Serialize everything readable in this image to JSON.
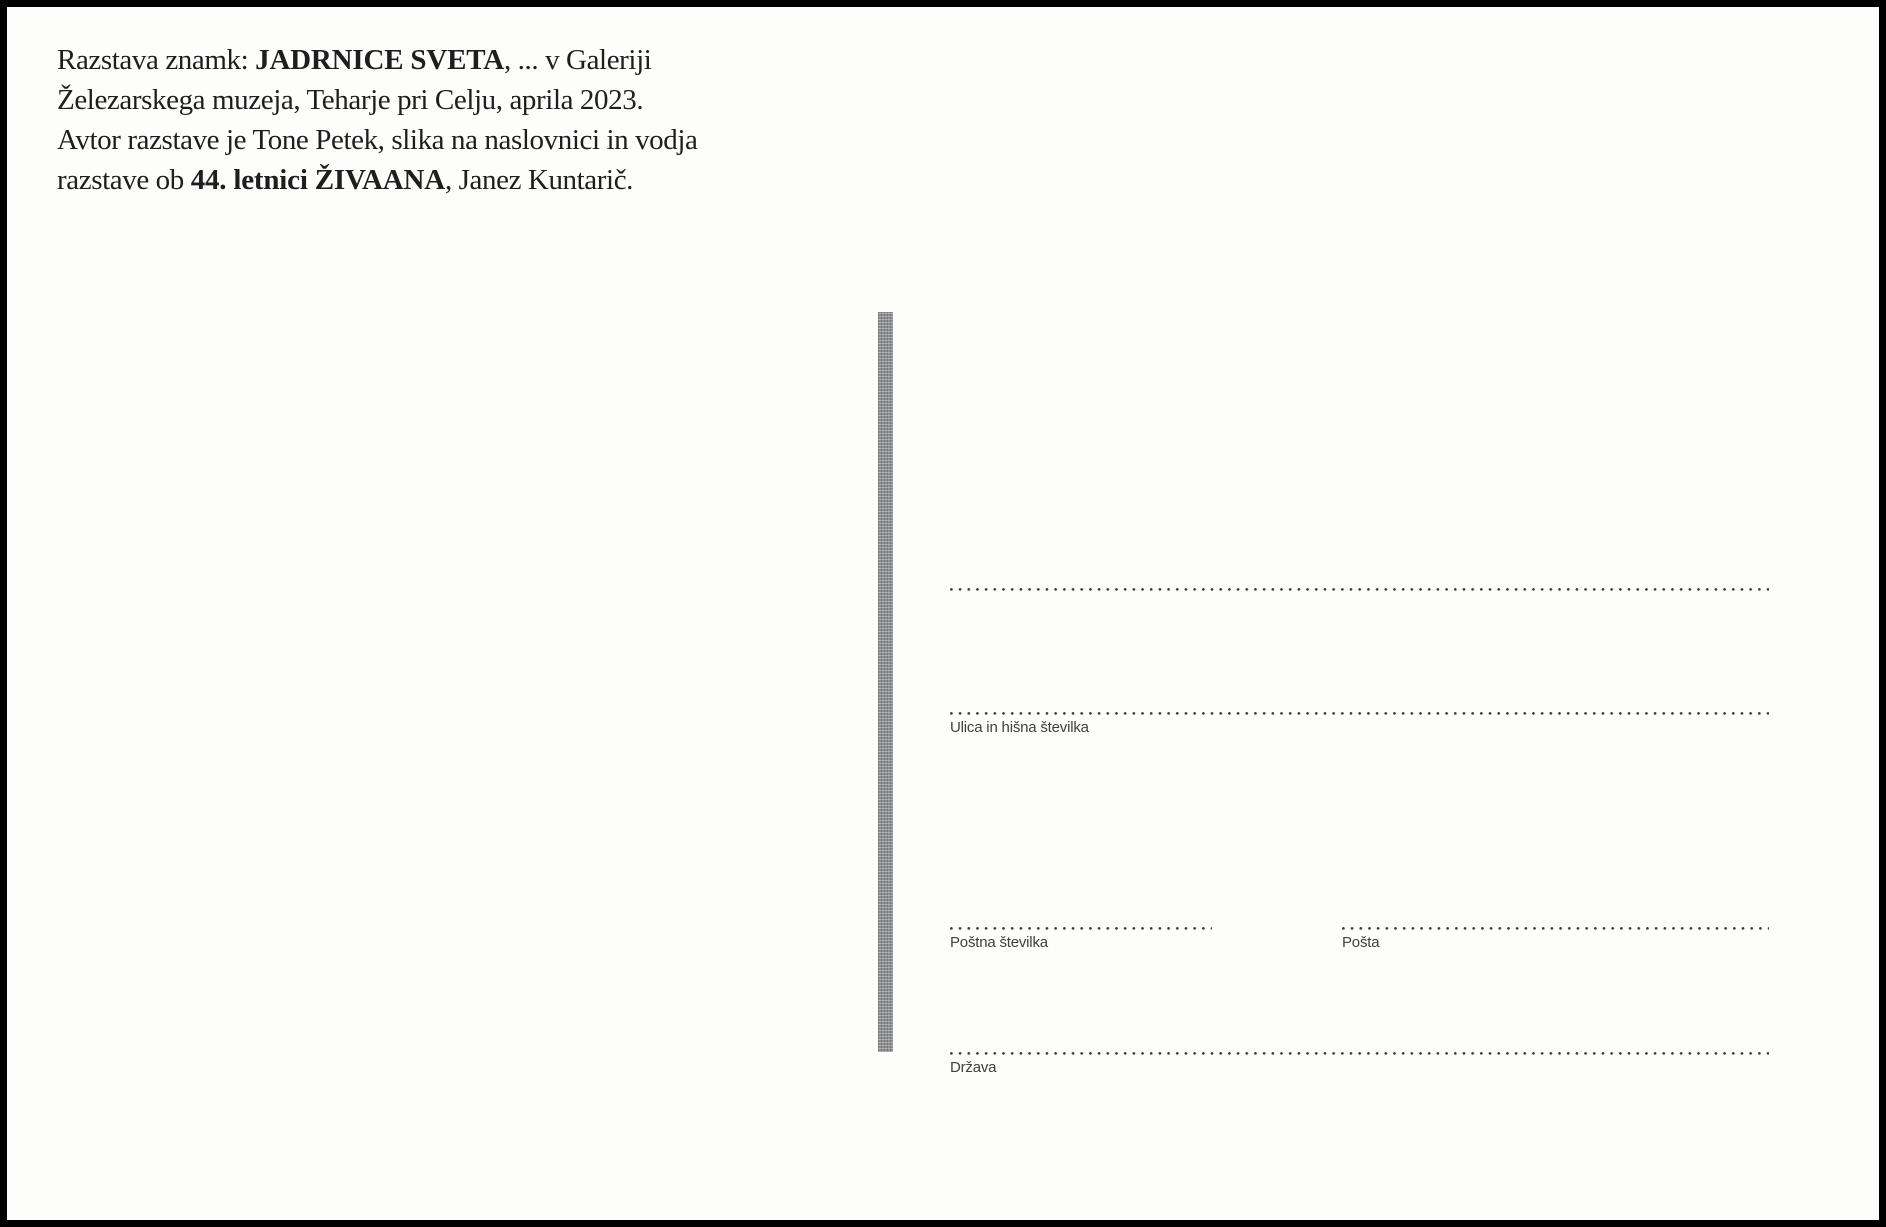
{
  "caption": {
    "line1": {
      "pre": "Razstava znamk: ",
      "bold": "JADRNICE SVETA",
      "post": ", ... v Galeriji"
    },
    "line2": {
      "text": "Železarskega muzeja, Teharje pri Celju, aprila 2023."
    },
    "line3": {
      "text": "Avtor razstave je Tone Petek, slika na naslovnici in vodja"
    },
    "line4": {
      "pre": "razstave ob ",
      "bold": "44. letnici ŽIVAANA",
      "post": ", Janez Kuntarič."
    }
  },
  "address": {
    "street_label": "Ulica in hišna številka",
    "postal_code_label": "Poštna številka",
    "post_office_label": "Pošta",
    "country_label": "Država"
  },
  "colors": {
    "border_color": "#000000",
    "background": "#fdfdfc",
    "caption_text": "#1e1e1e",
    "divider_bar": "#8f9192",
    "dotted_line": "#3d3d3d",
    "label_text": "#404040"
  }
}
